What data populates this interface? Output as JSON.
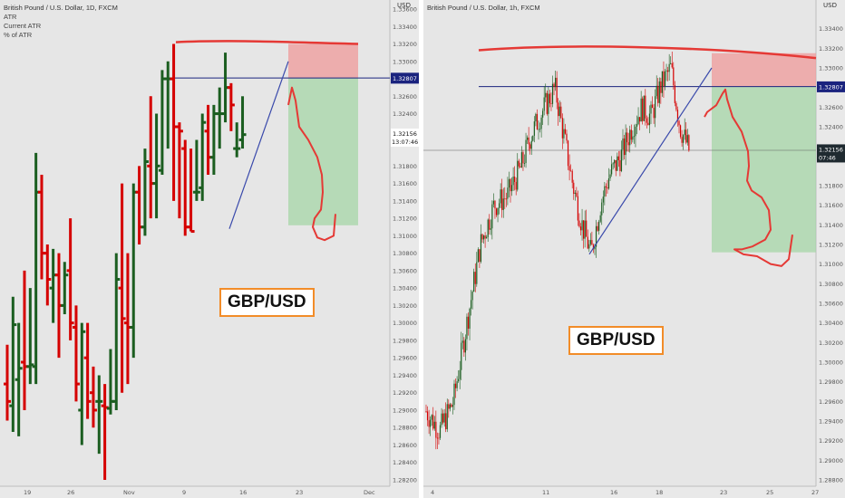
{
  "chart_data": [
    {
      "type": "ohlc",
      "title": "British Pound / U.S. Dollar, 1D, FXCM",
      "indicators": [
        "ATR",
        "Current ATR",
        "% of ATR"
      ],
      "label": "GBP/USD",
      "yunit": "USD",
      "ylim": [
        1.282,
        1.336
      ],
      "yticks": [
        "1.33600",
        "1.33400",
        "1.33200",
        "1.33000",
        "1.32807",
        "1.32600",
        "1.32400",
        "1.32156",
        "1.31800",
        "1.31600",
        "1.31400",
        "1.31200",
        "1.31000",
        "1.30800",
        "1.30600",
        "1.30400",
        "1.30200",
        "1.30000",
        "1.29800",
        "1.29600",
        "1.29400",
        "1.29200",
        "1.29000",
        "1.28800",
        "1.28600",
        "1.28400",
        "1.28200"
      ],
      "xticks": [
        "19",
        "26",
        "Nov",
        "9",
        "16",
        "23",
        "Dec"
      ],
      "price_tag": {
        "value": "1.32807",
        "color": "#1a237e"
      },
      "last_price": {
        "value": "1.32156",
        "countdown": "13:07:46"
      },
      "bull_color": "#1b5e20",
      "bear_color": "#d50000",
      "bars": [
        {
          "o": 1.293,
          "h": 1.2975,
          "l": 1.2888,
          "c": 1.291
        },
        {
          "o": 1.2905,
          "h": 1.303,
          "l": 1.2875,
          "c": 1.2998
        },
        {
          "o": 1.2935,
          "h": 1.3,
          "l": 1.287,
          "c": 1.2948
        },
        {
          "o": 1.2955,
          "h": 1.306,
          "l": 1.29,
          "c": 1.295
        },
        {
          "o": 1.295,
          "h": 1.304,
          "l": 1.293,
          "c": 1.2952
        },
        {
          "o": 1.295,
          "h": 1.3195,
          "l": 1.293,
          "c": 1.315
        },
        {
          "o": 1.315,
          "h": 1.317,
          "l": 1.305,
          "c": 1.308
        },
        {
          "o": 1.308,
          "h": 1.309,
          "l": 1.302,
          "c": 1.305
        },
        {
          "o": 1.304,
          "h": 1.3085,
          "l": 1.3,
          "c": 1.3055
        },
        {
          "o": 1.3055,
          "h": 1.308,
          "l": 1.296,
          "c": 1.302
        },
        {
          "o": 1.302,
          "h": 1.307,
          "l": 1.301,
          "c": 1.3055
        },
        {
          "o": 1.306,
          "h": 1.312,
          "l": 1.298,
          "c": 1.3
        },
        {
          "o": 1.2995,
          "h": 1.302,
          "l": 1.291,
          "c": 1.293
        },
        {
          "o": 1.29,
          "h": 1.3,
          "l": 1.286,
          "c": 1.299
        },
        {
          "o": 1.296,
          "h": 1.3,
          "l": 1.289,
          "c": 1.291
        },
        {
          "o": 1.292,
          "h": 1.295,
          "l": 1.288,
          "c": 1.29
        },
        {
          "o": 1.291,
          "h": 1.294,
          "l": 1.285,
          "c": 1.291
        },
        {
          "o": 1.2905,
          "h": 1.293,
          "l": 1.282,
          "c": 1.2903
        },
        {
          "o": 1.2902,
          "h": 1.297,
          "l": 1.2895,
          "c": 1.291
        },
        {
          "o": 1.291,
          "h": 1.308,
          "l": 1.29,
          "c": 1.305
        },
        {
          "o": 1.304,
          "h": 1.316,
          "l": 1.292,
          "c": 1.3005
        },
        {
          "o": 1.3,
          "h": 1.308,
          "l": 1.293,
          "c": 1.2995
        },
        {
          "o": 1.2995,
          "h": 1.316,
          "l": 1.296,
          "c": 1.315
        },
        {
          "o": 1.315,
          "h": 1.318,
          "l": 1.309,
          "c": 1.311
        },
        {
          "o": 1.311,
          "h": 1.32,
          "l": 1.31,
          "c": 1.3185
        },
        {
          "o": 1.318,
          "h": 1.326,
          "l": 1.312,
          "c": 1.316
        },
        {
          "o": 1.316,
          "h": 1.324,
          "l": 1.312,
          "c": 1.318
        },
        {
          "o": 1.3175,
          "h": 1.329,
          "l": 1.317,
          "c": 1.328
        },
        {
          "o": 1.328,
          "h": 1.33,
          "l": 1.32,
          "c": 1.328
        },
        {
          "o": 1.328,
          "h": 1.332,
          "l": 1.314,
          "c": 1.3225
        },
        {
          "o": 1.3225,
          "h": 1.323,
          "l": 1.312,
          "c": 1.322
        },
        {
          "o": 1.32,
          "h": 1.321,
          "l": 1.31,
          "c": 1.311
        },
        {
          "o": 1.311,
          "h": 1.32,
          "l": 1.3105,
          "c": 1.3105
        },
        {
          "o": 1.315,
          "h": 1.321,
          "l": 1.314,
          "c": 1.315
        },
        {
          "o": 1.3155,
          "h": 1.324,
          "l": 1.314,
          "c": 1.323
        },
        {
          "o": 1.322,
          "h": 1.325,
          "l": 1.317,
          "c": 1.319
        },
        {
          "o": 1.319,
          "h": 1.325,
          "l": 1.317,
          "c": 1.324
        },
        {
          "o": 1.324,
          "h": 1.327,
          "l": 1.32,
          "c": 1.324
        },
        {
          "o": 1.324,
          "h": 1.331,
          "l": 1.323,
          "c": 1.327
        },
        {
          "o": 1.327,
          "h": 1.3275,
          "l": 1.322,
          "c": 1.325
        },
        {
          "o": 1.32,
          "h": 1.323,
          "l": 1.319,
          "c": 1.32
        },
        {
          "o": 1.321,
          "h": 1.326,
          "l": 1.32,
          "c": 1.3216
        }
      ],
      "bar_x_first": 8,
      "bar_x_step": 6.33,
      "horizontal_line": 1.3281,
      "resistance_curve": [
        [
          194,
          1.3322
        ],
        [
          250,
          1.3325
        ],
        [
          320,
          1.3322
        ],
        [
          395,
          1.332
        ]
      ],
      "trendline": [
        [
          253,
          1.3108
        ],
        [
          318,
          1.33
        ]
      ],
      "zones": {
        "stop": [
          318,
          395,
          1.332,
          1.3281
        ],
        "target": [
          318,
          395,
          1.3281,
          1.3112
        ]
      },
      "projection": [
        [
          318,
          1.325
        ],
        [
          322,
          1.327
        ],
        [
          326,
          1.3255
        ],
        [
          330,
          1.3225
        ],
        [
          340,
          1.321
        ],
        [
          350,
          1.319
        ],
        [
          355,
          1.317
        ],
        [
          356,
          1.315
        ],
        [
          354,
          1.313
        ],
        [
          347,
          1.312
        ],
        [
          345,
          1.311
        ],
        [
          350,
          1.3098
        ],
        [
          358,
          1.3095
        ],
        [
          368,
          1.31
        ],
        [
          370,
          1.3125
        ]
      ]
    },
    {
      "type": "candlestick",
      "title": "British Pound / U.S. Dollar, 1h, FXCM",
      "label": "GBP/USD",
      "yunit": "USD",
      "ylim": [
        1.288,
        1.336
      ],
      "yticks": [
        "1.33400",
        "1.33200",
        "1.33000",
        "1.32807",
        "1.32600",
        "1.32400",
        "1.32156",
        "1.31800",
        "1.31600",
        "1.31400",
        "1.31200",
        "1.31000",
        "1.30800",
        "1.30600",
        "1.30400",
        "1.30200",
        "1.30000",
        "1.29800",
        "1.29600",
        "1.29400",
        "1.29200",
        "1.29000",
        "1.28800"
      ],
      "xticks": [
        "4",
        "11",
        "16",
        "18",
        "23",
        "25",
        "27"
      ],
      "price_tag": {
        "value": "1.32807",
        "color": "#1a237e"
      },
      "last_price": {
        "value": "1.32156",
        "countdown": "07:46"
      },
      "bull_color": "#1b5e20",
      "bear_color": "#d50000",
      "path": [
        [
          470,
          1.295
        ],
        [
          485,
          1.293
        ],
        [
          500,
          1.296
        ],
        [
          515,
          1.304
        ],
        [
          530,
          1.312
        ],
        [
          545,
          1.316
        ],
        [
          560,
          1.317
        ],
        [
          575,
          1.32
        ],
        [
          585,
          1.323
        ],
        [
          595,
          1.325
        ],
        [
          612,
          1.328
        ],
        [
          622,
          1.323
        ],
        [
          632,
          1.318
        ],
        [
          642,
          1.314
        ],
        [
          652,
          1.311
        ],
        [
          662,
          1.316
        ],
        [
          672,
          1.319
        ],
        [
          685,
          1.321
        ],
        [
          697,
          1.324
        ],
        [
          708,
          1.326
        ],
        [
          718,
          1.325
        ],
        [
          728,
          1.328
        ],
        [
          740,
          1.33
        ],
        [
          750,
          1.324
        ],
        [
          760,
          1.3216
        ]
      ],
      "horizontal_line": 1.3281,
      "last_line": 1.3216,
      "resistance_curve": [
        [
          528,
          1.3318
        ],
        [
          620,
          1.3325
        ],
        [
          780,
          1.3322
        ],
        [
          900,
          1.331
        ]
      ],
      "trendline": [
        [
          650,
          1.311
        ],
        [
          785,
          1.33
        ]
      ],
      "zones": {
        "stop": [
          785,
          900,
          1.3315,
          1.3281
        ],
        "target": [
          785,
          900,
          1.3281,
          1.3112
        ]
      },
      "projection": [
        [
          777,
          1.325
        ],
        [
          780,
          1.3255
        ],
        [
          790,
          1.3262
        ],
        [
          797,
          1.3274
        ],
        [
          800,
          1.3278
        ],
        [
          802,
          1.3268
        ],
        [
          808,
          1.325
        ],
        [
          818,
          1.3235
        ],
        [
          825,
          1.3215
        ],
        [
          826,
          1.32
        ],
        [
          824,
          1.3185
        ],
        [
          829,
          1.3175
        ],
        [
          840,
          1.3168
        ],
        [
          848,
          1.3155
        ],
        [
          850,
          1.3135
        ],
        [
          844,
          1.3125
        ],
        [
          830,
          1.3118
        ],
        [
          818,
          1.3115
        ],
        [
          810,
          1.3115
        ],
        [
          820,
          1.311
        ],
        [
          835,
          1.3108
        ],
        [
          850,
          1.31
        ],
        [
          862,
          1.3098
        ],
        [
          870,
          1.3105
        ],
        [
          874,
          1.313
        ]
      ]
    }
  ]
}
